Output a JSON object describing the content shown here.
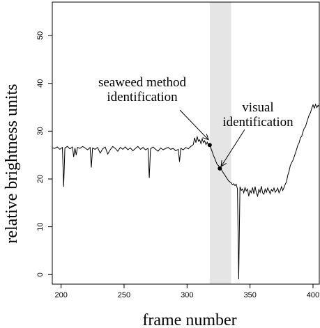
{
  "chart_data": {
    "type": "line",
    "title": "",
    "xlabel": "frame number",
    "ylabel": "relative brightness units",
    "xlim": [
      193,
      405
    ],
    "ylim": [
      -2,
      57
    ],
    "x_ticks": [
      200,
      250,
      300,
      350,
      400
    ],
    "x_tick_labels": [
      "200",
      "250",
      "300",
      "350",
      "400"
    ],
    "y_ticks": [
      0,
      10,
      20,
      30,
      40,
      50
    ],
    "y_tick_labels": [
      "0",
      "10",
      "20",
      "30",
      "40",
      "50"
    ],
    "grid": false,
    "legend": "none",
    "shaded_region": {
      "x_start": 318,
      "x_end": 335,
      "color": "#e5e5e5"
    },
    "points": [
      {
        "x": 318,
        "y": 27.1
      },
      {
        "x": 326,
        "y": 22.2
      }
    ],
    "annotations": [
      {
        "lines": [
          "seaweed method",
          "identification"
        ],
        "target": {
          "x": 317,
          "y": 28.2
        }
      },
      {
        "lines": [
          "visual",
          "identification"
        ],
        "target": {
          "x": 327,
          "y": 22.6
        }
      }
    ],
    "series": [
      {
        "x": [
          193,
          195,
          197,
          199,
          201,
          202,
          203,
          205,
          207,
          209,
          210,
          211,
          212,
          213,
          215,
          217,
          219,
          221,
          223,
          224,
          225,
          227,
          229,
          231,
          233,
          235,
          237,
          239,
          241,
          243,
          245,
          247,
          249,
          251,
          253,
          255,
          257,
          259,
          261,
          263,
          265,
          267,
          269,
          270,
          271,
          273,
          275,
          277,
          279,
          281,
          283,
          285,
          287,
          289,
          291,
          293,
          294,
          295,
          297,
          299,
          301,
          303,
          305,
          306,
          307,
          308,
          309,
          310,
          311,
          312,
          313,
          314,
          315,
          316,
          317,
          318,
          319,
          320,
          321,
          322,
          323,
          324,
          325,
          326,
          327,
          328,
          329,
          330,
          331,
          332,
          333,
          334,
          335,
          336,
          337,
          338,
          339,
          340,
          341,
          342,
          343,
          344,
          345,
          346,
          347,
          348,
          349,
          350,
          351,
          352,
          353,
          354,
          355,
          356,
          357,
          358,
          359,
          360,
          361,
          362,
          363,
          364,
          365,
          366,
          367,
          368,
          369,
          370,
          371,
          372,
          373,
          374,
          375,
          376,
          377,
          378,
          379,
          380,
          381,
          382,
          383,
          384,
          385,
          386,
          387,
          388,
          389,
          390,
          391,
          392,
          393,
          394,
          395,
          396,
          397,
          398,
          399,
          400,
          401,
          402,
          403,
          404,
          405
        ],
        "y": [
          26.5,
          26.4,
          26.7,
          26.2,
          26.6,
          18.4,
          26.5,
          26.8,
          26.3,
          26.7,
          24.6,
          26.5,
          25.0,
          26.6,
          26.4,
          26.8,
          26.5,
          26.1,
          26.6,
          22.4,
          26.5,
          26.2,
          26.6,
          25.4,
          26.3,
          26.7,
          25.2,
          26.1,
          26.8,
          26.4,
          25.8,
          26.6,
          26.2,
          26.7,
          26.1,
          26.5,
          25.9,
          26.4,
          26.8,
          26.2,
          26.6,
          26.1,
          26.4,
          20.2,
          26.3,
          26.7,
          26.2,
          25.8,
          26.5,
          26.1,
          26.4,
          26.6,
          26.2,
          26.4,
          25.9,
          26.2,
          23.6,
          26.4,
          26.1,
          26.6,
          26.3,
          26.8,
          27.2,
          28.6,
          27.6,
          28.9,
          27.9,
          28.2,
          27.4,
          28.4,
          27.6,
          28.0,
          27.2,
          27.7,
          27.0,
          27.1,
          26.4,
          25.7,
          24.9,
          24.3,
          23.6,
          23.0,
          22.8,
          22.2,
          22.1,
          21.6,
          21.2,
          20.8,
          20.4,
          20.0,
          19.6,
          19.4,
          19.2,
          18.8,
          19.0,
          18.6,
          18.9,
          17.9,
          -1.0,
          18.4,
          17.6,
          17.9,
          17.1,
          18.2,
          17.5,
          17.9,
          16.4,
          17.6,
          17.1,
          18.2,
          16.9,
          18.4,
          17.1,
          16.4,
          17.8,
          17.2,
          18.5,
          17.1,
          16.8,
          17.9,
          17.2,
          18.1,
          17.6,
          16.9,
          17.8,
          17.4,
          18.1,
          17.2,
          17.6,
          18.1,
          17.1,
          17.6,
          18.4,
          17.6,
          18.2,
          18.9,
          19.4,
          20.8,
          21.6,
          22.8,
          23.4,
          23.9,
          24.6,
          25.4,
          26.2,
          27.1,
          27.6,
          28.6,
          28.9,
          29.8,
          30.6,
          30.9,
          31.8,
          32.6,
          33.4,
          33.9,
          34.8,
          35.5,
          34.8,
          35.6,
          34.9,
          35.4,
          35.1
        ]
      }
    ]
  }
}
